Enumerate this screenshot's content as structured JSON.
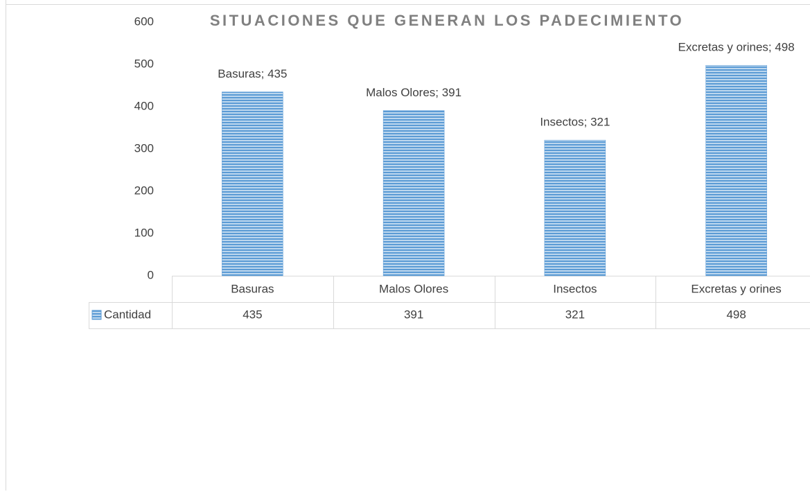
{
  "chart_data": {
    "type": "bar",
    "title": "SITUACIONES QUE GENERAN LOS PADECIMIENTO",
    "categories": [
      "Basuras",
      "Malos Olores",
      "Insectos",
      "Excretas y orines"
    ],
    "series": [
      {
        "name": "Cantidad",
        "color": "#5b9bd5",
        "values": [
          435,
          391,
          321,
          498
        ],
        "value_labels": [
          "Basuras; 435",
          "Malos Olores; 391",
          "Insectos; 321",
          "Excretas y orines; 498"
        ]
      }
    ],
    "ylim": [
      0,
      600
    ],
    "yticks": [
      0,
      100,
      200,
      300,
      400,
      500,
      600
    ],
    "grid": false,
    "data_table": true
  }
}
